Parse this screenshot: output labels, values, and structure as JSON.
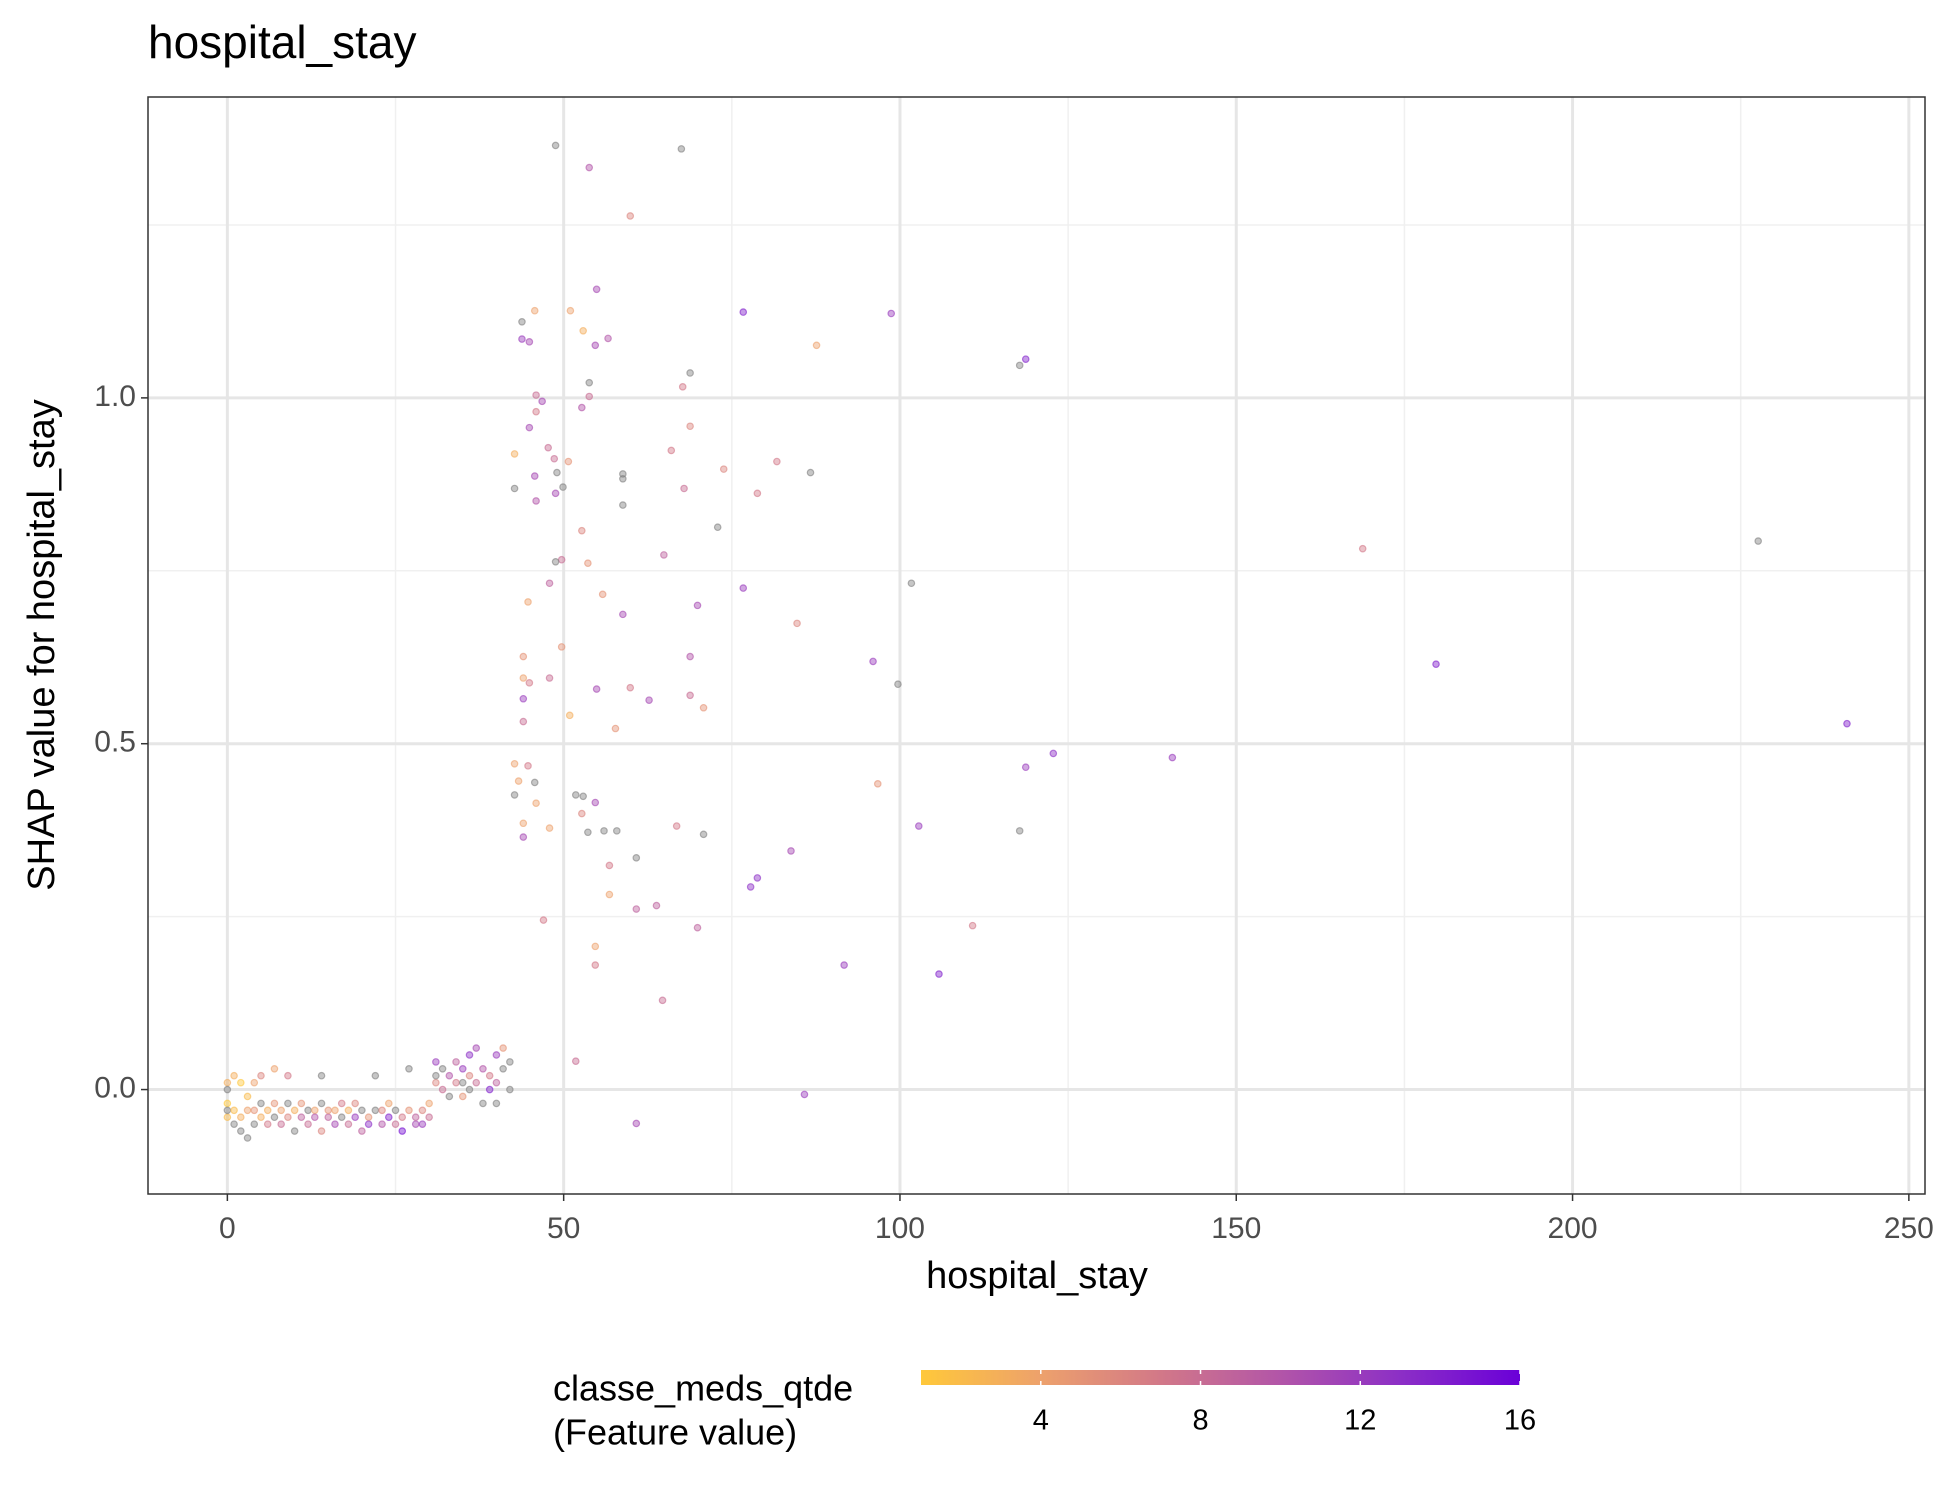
{
  "chart_data": {
    "type": "scatter",
    "title": "hospital_stay",
    "x_label": "hospital_stay",
    "y_label": "SHAP value for hospital_stay",
    "xlim": [
      -11.8,
      252.4
    ],
    "ylim": [
      -0.151,
      1.435
    ],
    "xticks": [
      0,
      50,
      100,
      150,
      200,
      250
    ],
    "yticks": [
      {
        "value": 0,
        "label": "0.0"
      },
      0.5,
      {
        "value": 1,
        "label": "1.0"
      }
    ],
    "x_minor_grid": [
      25,
      75,
      125,
      175,
      225
    ],
    "y_minor_grid": [
      0.25,
      0.75,
      1.25
    ],
    "grid": true,
    "na_color": "#808080",
    "colorbar": {
      "title": [
        "classe_meds_qtde",
        "(Feature value)"
      ],
      "lim": [
        1,
        16
      ],
      "ticks": [
        4,
        8,
        12,
        16
      ],
      "colors": [
        "#FFC83A",
        "#EDA16C",
        "#D27888",
        "#B255A8",
        "#8C2FC6",
        "#6A00D8"
      ]
    },
    "x": [
      48.8,
      67.5,
      53.8,
      59.9,
      54.9,
      76.7,
      98.7,
      51.0,
      45.7,
      43.8,
      52.9,
      87.6,
      56.6,
      54.7,
      43.8,
      44.9,
      118.7,
      117.8,
      68.8,
      53.8,
      67.7,
      45.9,
      53.8,
      46.8,
      45.9,
      52.7,
      68.8,
      44.9,
      47.7,
      66.0,
      50.7,
      81.7,
      48.6,
      42.7,
      73.8,
      58.8,
      86.7,
      49.0,
      45.7,
      58.8,
      67.9,
      49.9,
      42.7,
      48.8,
      78.8,
      45.9,
      58.8,
      168.8,
      227.6,
      72.9,
      52.7,
      64.9,
      49.7,
      48.8,
      53.6,
      101.7,
      76.7,
      47.9,
      55.8,
      44.7,
      69.9,
      58.8,
      84.7,
      49.7,
      44.0,
      68.8,
      96.0,
      179.7,
      44.0,
      47.9,
      44.9,
      99.7,
      59.9,
      54.9,
      68.8,
      44.0,
      62.7,
      70.8,
      50.9,
      44.0,
      240.8,
      57.7,
      122.8,
      140.5,
      42.7,
      44.7,
      118.7,
      45.7,
      96.7,
      43.3,
      42.7,
      51.8,
      52.9,
      54.7,
      45.9,
      52.7,
      44.0,
      47.9,
      53.6,
      56.0,
      57.9,
      66.8,
      70.8,
      102.8,
      117.8,
      44.0,
      83.8,
      60.8,
      56.8,
      78.8,
      77.8,
      56.8,
      63.8,
      60.8,
      47.0,
      110.8,
      69.9,
      54.7,
      54.7,
      91.7,
      105.8,
      64.7,
      51.8,
      85.8,
      60.8,
      0,
      0,
      0,
      0,
      0,
      1,
      1,
      1,
      2,
      2,
      2,
      3,
      3,
      3,
      4,
      4,
      4,
      5,
      5,
      5,
      6,
      6,
      7,
      7,
      7,
      8,
      8,
      9,
      9,
      9,
      10,
      10,
      11,
      11,
      12,
      12,
      13,
      13,
      14,
      14,
      14,
      15,
      15,
      16,
      16,
      17,
      17,
      18,
      18,
      19,
      19,
      20,
      20,
      21,
      21,
      22,
      22,
      23,
      23,
      24,
      24,
      25,
      25,
      26,
      26,
      27,
      27,
      28,
      28,
      29,
      29,
      30,
      30,
      31,
      31,
      31,
      32,
      32,
      33,
      33,
      34,
      34,
      35,
      35,
      35,
      36,
      36,
      36,
      37,
      37,
      38,
      38,
      39,
      39,
      40,
      40,
      40,
      41,
      41,
      42,
      42
    ],
    "values": [
      1.365,
      1.36,
      1.333,
      1.263,
      1.157,
      1.124,
      1.122,
      1.126,
      1.126,
      1.11,
      1.097,
      1.076,
      1.086,
      1.076,
      1.085,
      1.081,
      1.056,
      1.047,
      1.036,
      1.022,
      1.016,
      1.004,
      1.002,
      0.995,
      0.98,
      0.986,
      0.959,
      0.957,
      0.928,
      0.924,
      0.908,
      0.908,
      0.912,
      0.919,
      0.897,
      0.89,
      0.892,
      0.892,
      0.887,
      0.883,
      0.869,
      0.871,
      0.869,
      0.862,
      0.862,
      0.851,
      0.845,
      0.782,
      0.793,
      0.813,
      0.808,
      0.773,
      0.766,
      0.763,
      0.761,
      0.732,
      0.725,
      0.732,
      0.716,
      0.705,
      0.7,
      0.687,
      0.674,
      0.64,
      0.626,
      0.626,
      0.619,
      0.615,
      0.595,
      0.595,
      0.588,
      0.586,
      0.581,
      0.579,
      0.57,
      0.565,
      0.563,
      0.552,
      0.541,
      0.532,
      0.529,
      0.522,
      0.486,
      0.48,
      0.471,
      0.468,
      0.466,
      0.444,
      0.442,
      0.446,
      0.426,
      0.426,
      0.424,
      0.415,
      0.414,
      0.399,
      0.385,
      0.378,
      0.372,
      0.374,
      0.374,
      0.381,
      0.369,
      0.381,
      0.374,
      0.365,
      0.345,
      0.335,
      0.324,
      0.306,
      0.293,
      0.282,
      0.266,
      0.261,
      0.245,
      0.237,
      0.234,
      0.207,
      0.18,
      0.18,
      0.167,
      0.129,
      0.041,
      -0.007,
      -0.049,
      -0.04,
      -0.02,
      0.01,
      -0.03,
      0.0,
      -0.03,
      -0.05,
      0.02,
      -0.04,
      -0.06,
      0.01,
      -0.03,
      -0.07,
      -0.01,
      -0.05,
      -0.03,
      0.01,
      -0.04,
      -0.02,
      0.02,
      -0.05,
      -0.03,
      -0.04,
      -0.02,
      0.03,
      -0.03,
      -0.05,
      -0.04,
      -0.02,
      0.02,
      -0.03,
      -0.06,
      -0.04,
      -0.02,
      -0.05,
      -0.03,
      -0.03,
      -0.04,
      -0.06,
      -0.02,
      0.02,
      -0.04,
      -0.03,
      -0.05,
      -0.03,
      -0.04,
      -0.02,
      -0.05,
      -0.03,
      -0.04,
      -0.02,
      -0.06,
      -0.03,
      -0.04,
      -0.05,
      -0.03,
      0.02,
      -0.05,
      -0.03,
      -0.04,
      -0.02,
      -0.05,
      -0.03,
      -0.06,
      -0.04,
      -0.03,
      0.03,
      -0.05,
      -0.04,
      -0.03,
      -0.05,
      -0.04,
      -0.02,
      0.01,
      0.04,
      0.02,
      0.0,
      0.03,
      0.02,
      -0.01,
      0.01,
      0.04,
      0.03,
      -0.01,
      0.01,
      0.05,
      0.0,
      0.02,
      0.01,
      0.06,
      -0.02,
      0.03,
      0.02,
      0.0,
      0.05,
      -0.02,
      0.01,
      0.03,
      0.06,
      0.04,
      0.0
    ],
    "color_values": [
      null,
      null,
      10,
      6,
      11,
      14,
      12,
      4,
      4,
      null,
      3,
      4,
      10,
      11,
      12,
      11,
      14,
      null,
      null,
      null,
      7,
      8,
      8,
      11,
      7,
      10,
      6,
      11,
      8,
      7,
      5,
      7,
      8,
      3,
      6,
      null,
      null,
      null,
      11,
      null,
      8,
      null,
      null,
      11,
      7,
      10,
      null,
      7,
      null,
      null,
      6,
      9,
      8,
      null,
      5,
      null,
      12,
      9,
      5,
      4,
      11,
      11,
      6,
      5,
      5,
      10,
      12,
      14,
      4,
      8,
      7,
      null,
      7,
      11,
      8,
      12,
      11,
      5,
      3,
      8,
      14,
      5,
      13,
      12,
      4,
      7,
      12,
      null,
      5,
      4,
      null,
      null,
      null,
      11,
      4,
      6,
      4,
      4,
      null,
      null,
      null,
      7,
      null,
      12,
      null,
      11,
      11,
      null,
      7,
      13,
      13,
      4,
      9,
      9,
      7,
      7,
      9,
      4,
      7,
      12,
      14,
      8,
      8,
      12,
      11,
      2,
      1,
      3,
      null,
      null,
      2,
      null,
      3,
      3,
      null,
      1,
      4,
      null,
      2,
      null,
      5,
      4,
      3,
      null,
      6,
      7,
      3,
      null,
      5,
      4,
      4,
      8,
      6,
      null,
      7,
      3,
      null,
      9,
      5,
      8,
      null,
      4,
      10,
      6,
      null,
      null,
      9,
      5,
      11,
      4,
      null,
      7,
      8,
      3,
      12,
      6,
      9,
      null,
      5,
      13,
      null,
      null,
      10,
      6,
      14,
      4,
      8,
      null,
      15,
      7,
      5,
      null,
      11,
      9,
      6,
      12,
      8,
      4,
      6,
      12,
      null,
      8,
      null,
      10,
      null,
      7,
      9,
      12,
      5,
      null,
      13,
      null,
      6,
      8,
      11,
      null,
      10,
      7,
      14,
      12,
      null,
      9,
      null,
      5,
      null,
      null
    ]
  }
}
